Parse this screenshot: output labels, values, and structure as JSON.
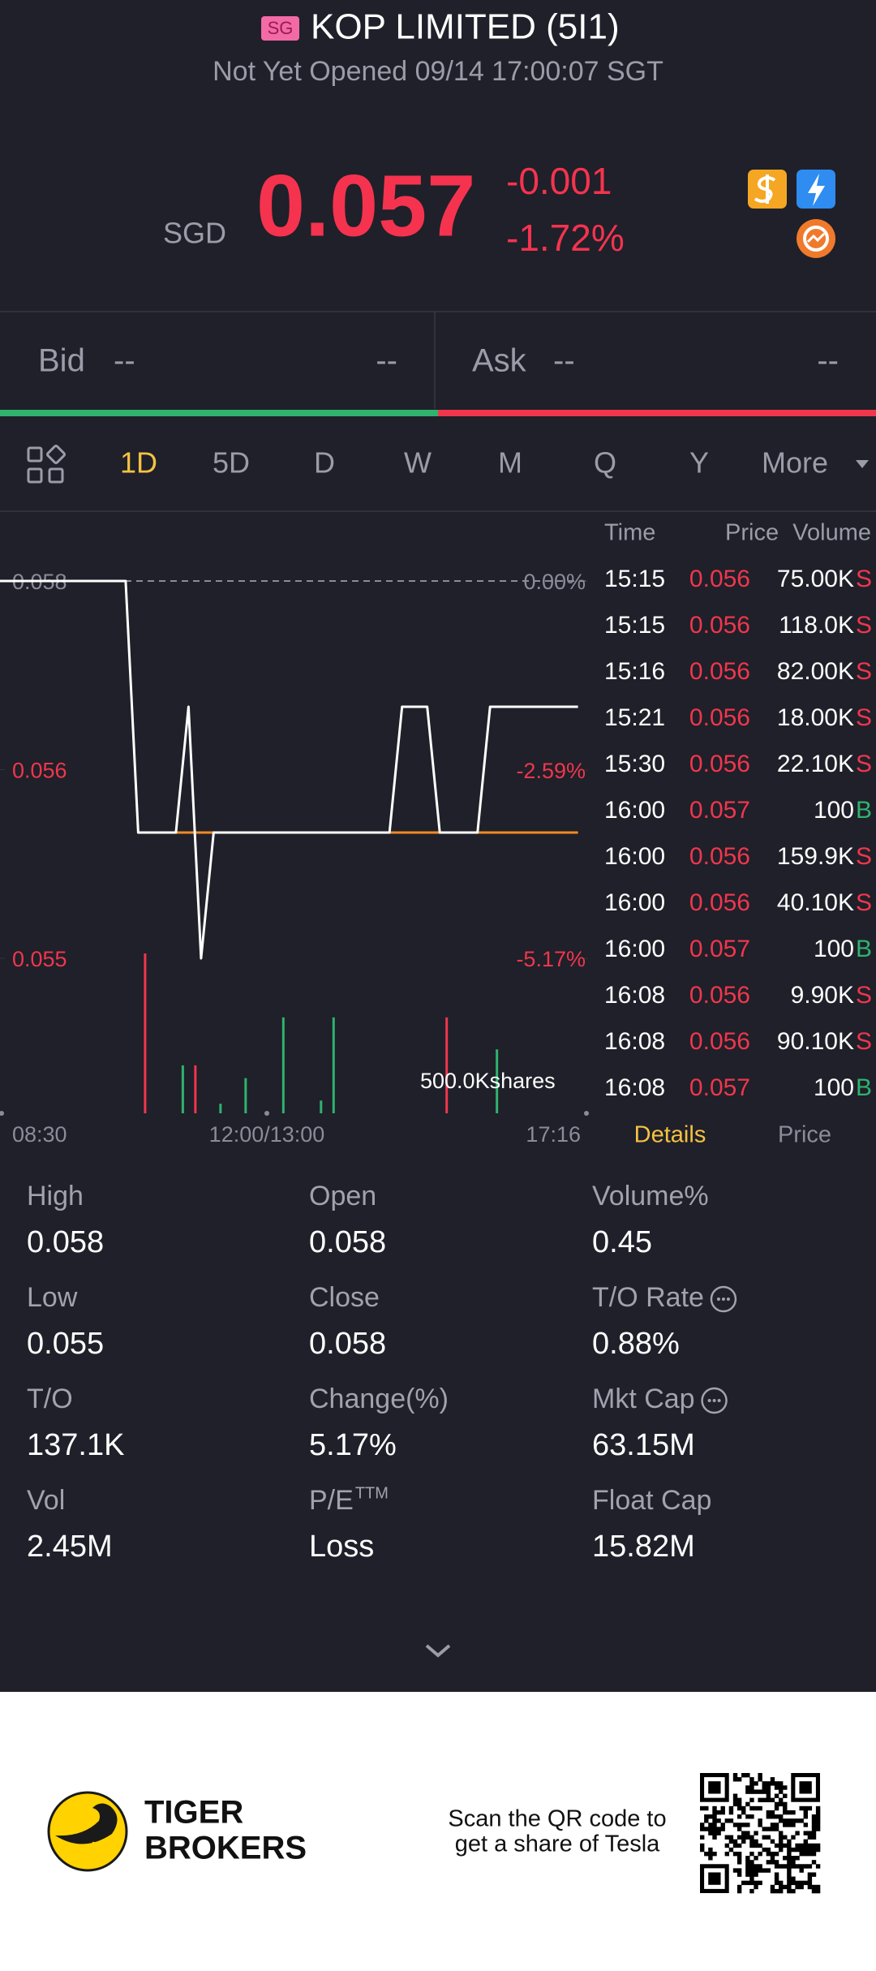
{
  "header": {
    "market_badge": "SG",
    "title": "KOP LIMITED (5I1)",
    "status": "Not Yet Opened 09/14 17:00:07 SGT"
  },
  "quote": {
    "currency": "SGD",
    "price": "0.057",
    "change": "-0.001",
    "change_pct": "-1.72%"
  },
  "order_book": {
    "bid_label": "Bid",
    "bid_price": "--",
    "bid_size": "--",
    "ask_label": "Ask",
    "ask_price": "--",
    "ask_size": "--"
  },
  "tabs": {
    "items": [
      "1D",
      "5D",
      "D",
      "W",
      "M",
      "Q",
      "Y",
      "More"
    ],
    "active": 0
  },
  "chart_data": {
    "type": "line",
    "ylim": [
      0.055,
      0.058
    ],
    "yticks": [
      0.058,
      {
        "value": 0.0565,
        "label": "0.056"
      },
      0.055
    ],
    "y2lim": [
      -5.17,
      0
    ],
    "y2ticks": [
      {
        "value": 0,
        "label": "0.00%"
      },
      {
        "value": -2.59,
        "label": "-2.59%"
      },
      {
        "value": -5.17,
        "label": "-5.17%"
      }
    ],
    "prev_close": 0.058,
    "x_labels": [
      "08:30",
      "12:00/13:00",
      "17:16"
    ],
    "series": [
      {
        "color": "#ffffff",
        "values": [
          0.058,
          0.058,
          0.058,
          0.058,
          0.058,
          0.058,
          0.058,
          0.058,
          0.058,
          0.058,
          0.058,
          0.056,
          0.056,
          0.056,
          0.056,
          0.057,
          0.055,
          0.056,
          0.056,
          0.056,
          0.056,
          0.056,
          0.056,
          0.056,
          0.056,
          0.056,
          0.056,
          0.056,
          0.056,
          0.056,
          0.056,
          0.056,
          0.057,
          0.057,
          0.057,
          0.056,
          0.056,
          0.056,
          0.056,
          0.057,
          0.057,
          0.057,
          0.057,
          0.057,
          0.057,
          0.057,
          0.057
        ]
      },
      {
        "color": "#f08a24",
        "values": [
          null,
          null,
          null,
          null,
          null,
          null,
          null,
          null,
          null,
          null,
          null,
          0.056,
          0.056,
          0.056,
          0.056,
          0.056,
          0.056,
          0.056,
          0.056,
          0.056,
          0.056,
          0.056,
          0.056,
          0.056,
          0.056,
          0.056,
          0.056,
          0.056,
          0.056,
          0.056,
          0.056,
          0.056,
          0.056,
          0.056,
          0.056,
          0.056,
          0.056,
          0.056,
          0.056,
          0.056,
          0.056,
          0.056,
          0.056,
          0.056,
          0.056,
          0.056,
          0.056
        ]
      }
    ],
    "volume": {
      "label": "500.0Kshares",
      "ylim": [
        0,
        500000
      ],
      "up_color": "#2fb36f",
      "down_color": "#f0364d",
      "up": [
        null,
        null,
        null,
        null,
        null,
        null,
        null,
        null,
        null,
        null,
        null,
        null,
        null,
        null,
        150000,
        null,
        null,
        30000,
        null,
        110000,
        null,
        null,
        300000,
        null,
        null,
        40000,
        300000,
        null,
        null,
        null,
        null,
        null,
        null,
        null,
        null,
        null,
        null,
        null,
        null,
        200000,
        null,
        null,
        null,
        null,
        null,
        null,
        null
      ],
      "down": [
        null,
        null,
        null,
        null,
        null,
        null,
        null,
        null,
        null,
        null,
        null,
        500000,
        null,
        null,
        null,
        150000,
        null,
        null,
        null,
        null,
        null,
        null,
        null,
        null,
        null,
        null,
        null,
        null,
        null,
        null,
        null,
        null,
        null,
        null,
        null,
        300000,
        null,
        null,
        null,
        null,
        null,
        null,
        null,
        null,
        null,
        null,
        null
      ]
    }
  },
  "trades": {
    "headers": {
      "time": "Time",
      "price": "Price",
      "volume": "Volume"
    },
    "side_colors": {
      "S": "#f0364d",
      "B": "#2fb36f"
    },
    "rows": [
      {
        "time": "15:15",
        "price": "0.056",
        "volume": "75.00K",
        "side": "S"
      },
      {
        "time": "15:15",
        "price": "0.056",
        "volume": "118.0K",
        "side": "S"
      },
      {
        "time": "15:16",
        "price": "0.056",
        "volume": "82.00K",
        "side": "S"
      },
      {
        "time": "15:21",
        "price": "0.056",
        "volume": "18.00K",
        "side": "S"
      },
      {
        "time": "15:30",
        "price": "0.056",
        "volume": "22.10K",
        "side": "S"
      },
      {
        "time": "16:00",
        "price": "0.057",
        "volume": "100",
        "side": "B"
      },
      {
        "time": "16:00",
        "price": "0.056",
        "volume": "159.9K",
        "side": "S"
      },
      {
        "time": "16:00",
        "price": "0.056",
        "volume": "40.10K",
        "side": "S"
      },
      {
        "time": "16:00",
        "price": "0.057",
        "volume": "100",
        "side": "B"
      },
      {
        "time": "16:08",
        "price": "0.056",
        "volume": "9.90K",
        "side": "S"
      },
      {
        "time": "16:08",
        "price": "0.056",
        "volume": "90.10K",
        "side": "S"
      },
      {
        "time": "16:08",
        "price": "0.057",
        "volume": "100",
        "side": "B"
      }
    ],
    "tabs": [
      "Details",
      "Price"
    ],
    "active_tab": 0
  },
  "stats": [
    {
      "label": "High",
      "value": "0.058"
    },
    {
      "label": "Open",
      "value": "0.058"
    },
    {
      "label": "Volume%",
      "value": "0.45"
    },
    {
      "label": "Low",
      "value": "0.055"
    },
    {
      "label": "Close",
      "value": "0.058"
    },
    {
      "label": "T/O Rate",
      "value": "0.88%",
      "info_icon": true
    },
    {
      "label": "T/O",
      "value": "137.1K"
    },
    {
      "label": "Change(%)",
      "value": "5.17%"
    },
    {
      "label": "Mkt Cap",
      "value": "63.15M",
      "info_icon": true
    },
    {
      "label": "Vol",
      "value": "2.45M"
    },
    {
      "label": "P/E",
      "superscript": "TTM",
      "value": "Loss"
    },
    {
      "label": "Float Cap",
      "value": "15.82M"
    }
  ],
  "footer": {
    "brand": [
      "TIGER",
      "BROKERS"
    ],
    "promo": [
      "Scan the QR code to",
      "get a share of Tesla"
    ]
  }
}
